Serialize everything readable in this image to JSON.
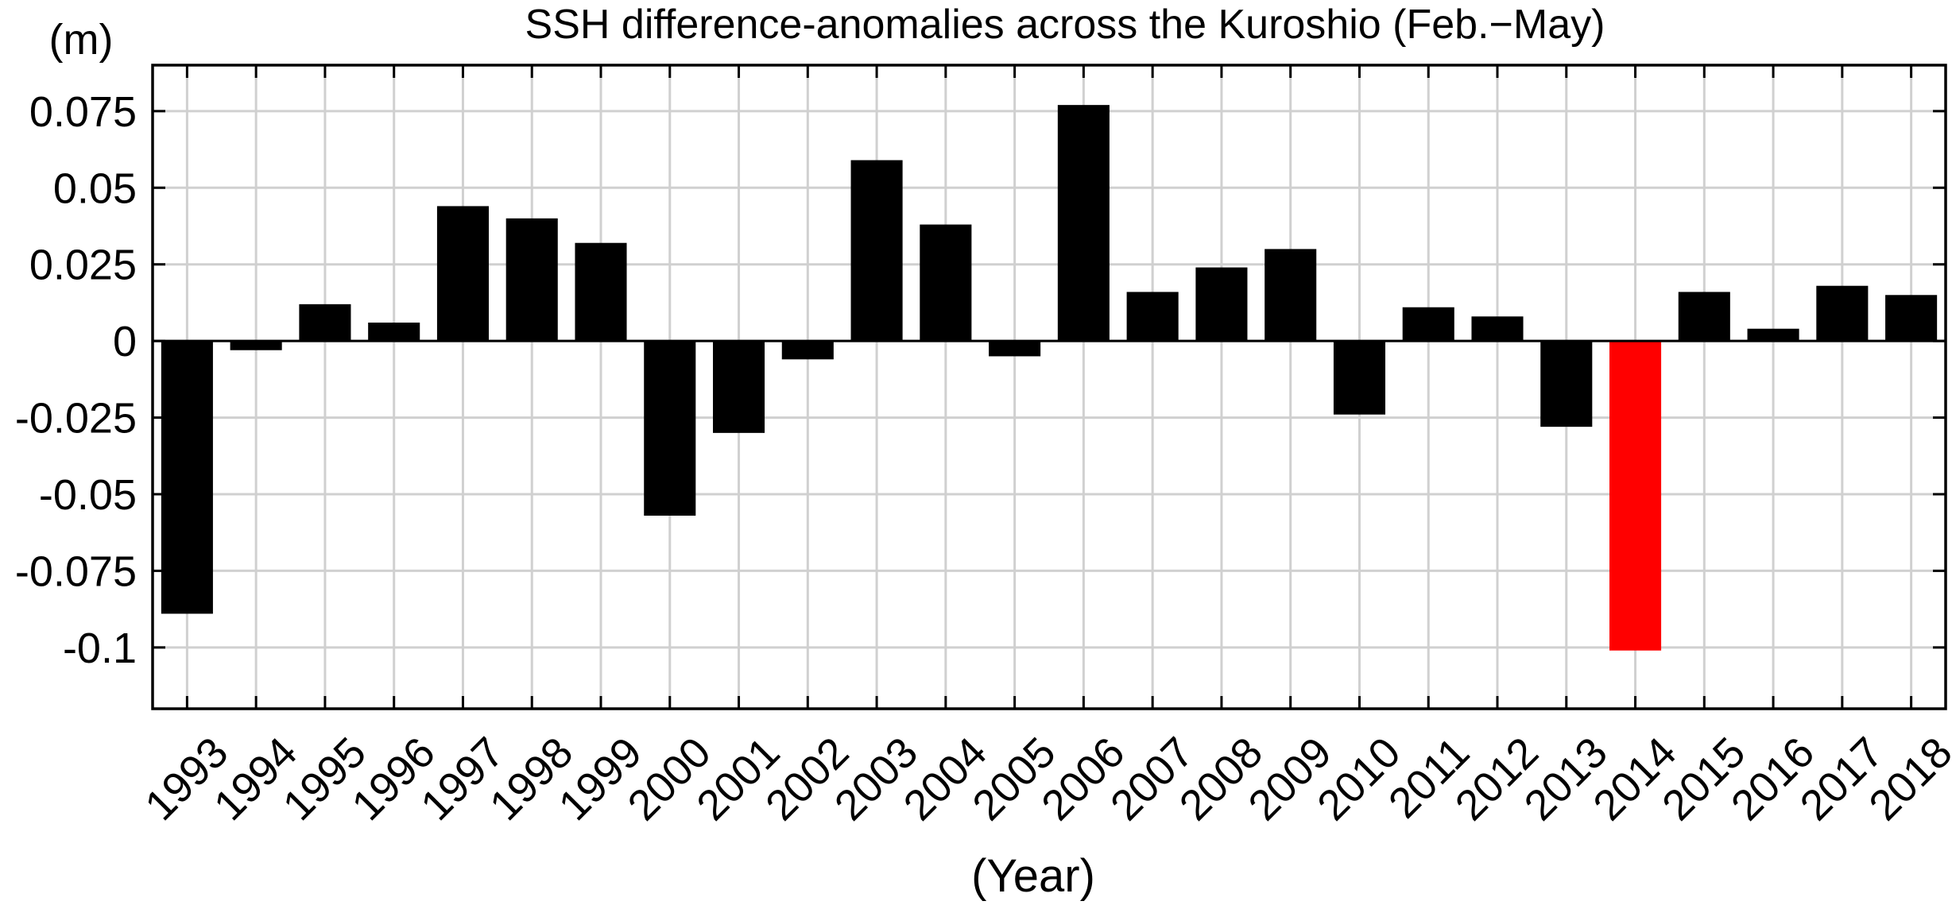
{
  "chart_data": {
    "type": "bar",
    "title": "SSH difference-anomalies across the Kuroshio (Feb.−May)",
    "ylabel": "(m)",
    "xlabel": "(Year)",
    "ylim": [
      -0.12,
      0.09
    ],
    "yticks": [
      0.075,
      0.05,
      0.025,
      0,
      -0.025,
      -0.05,
      -0.075,
      -0.1
    ],
    "ytick_labels": [
      "0.075",
      "0.05",
      "0.025",
      "0",
      "-0.025",
      "-0.05",
      "-0.075",
      "-0.1"
    ],
    "grid": true,
    "categories": [
      "1993",
      "1994",
      "1995",
      "1996",
      "1997",
      "1998",
      "1999",
      "2000",
      "2001",
      "2002",
      "2003",
      "2004",
      "2005",
      "2006",
      "2007",
      "2008",
      "2009",
      "2010",
      "2011",
      "2012",
      "2013",
      "2014",
      "2015",
      "2016",
      "2017",
      "2018"
    ],
    "values": [
      -0.089,
      -0.003,
      0.012,
      0.006,
      0.044,
      0.04,
      0.032,
      -0.057,
      -0.03,
      -0.006,
      0.059,
      0.038,
      -0.005,
      0.077,
      0.016,
      0.024,
      0.03,
      -0.024,
      0.011,
      0.008,
      -0.028,
      -0.101,
      0.016,
      0.004,
      0.018,
      0.015
    ],
    "bar_color": "#000000",
    "highlight_category": "2014",
    "highlight_color": "#ff0000",
    "grid_color": "#d0d0d0"
  }
}
